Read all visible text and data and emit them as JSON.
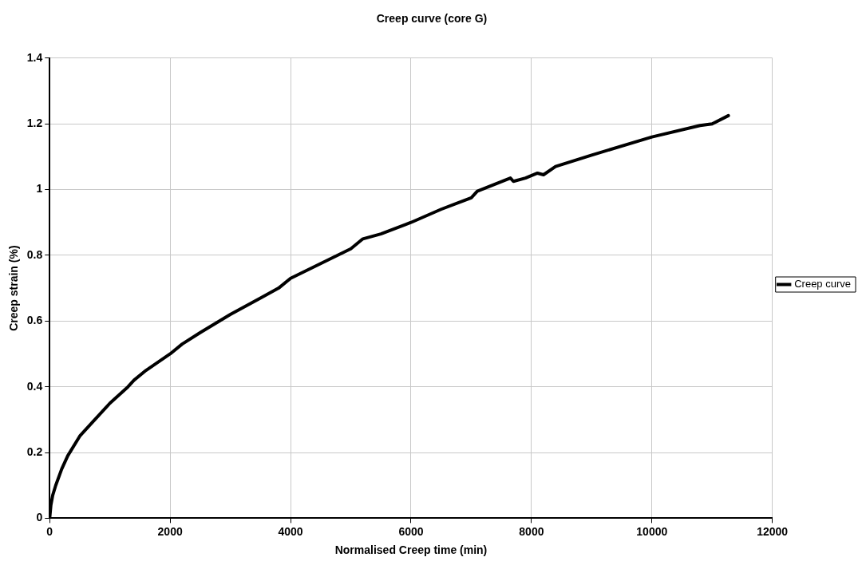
{
  "chart_data": {
    "type": "line",
    "title": "Creep curve (core G)",
    "xlabel": "Normalised Creep time (min)",
    "ylabel": "Creep strain (%)",
    "x": [
      0,
      20,
      50,
      100,
      200,
      300,
      500,
      700,
      1000,
      1300,
      1400,
      1600,
      2000,
      2200,
      2500,
      3000,
      3500,
      3800,
      4000,
      4500,
      5000,
      5200,
      5500,
      6000,
      6500,
      7000,
      7100,
      7650,
      7700,
      7900,
      8100,
      8200,
      8400,
      9000,
      10000,
      10800,
      11000,
      11270
    ],
    "series": [
      {
        "name": "Creep curve",
        "color": "#000000",
        "values": [
          0,
          0.04,
          0.07,
          0.1,
          0.15,
          0.19,
          0.25,
          0.29,
          0.35,
          0.4,
          0.42,
          0.45,
          0.5,
          0.53,
          0.565,
          0.62,
          0.67,
          0.7,
          0.73,
          0.775,
          0.82,
          0.85,
          0.865,
          0.9,
          0.94,
          0.975,
          0.995,
          1.035,
          1.025,
          1.035,
          1.05,
          1.045,
          1.07,
          1.105,
          1.16,
          1.195,
          1.2,
          1.225
        ]
      }
    ],
    "xlim": [
      0,
      12000
    ],
    "xticks": [
      0,
      2000,
      4000,
      6000,
      8000,
      10000,
      12000
    ],
    "ylim": [
      0,
      1.4
    ],
    "yticks": [
      0,
      0.2,
      0.4,
      0.6,
      0.8,
      1,
      1.2,
      1.4
    ],
    "grid": true,
    "legend": "right",
    "marker": "none",
    "line_style": "solid"
  }
}
